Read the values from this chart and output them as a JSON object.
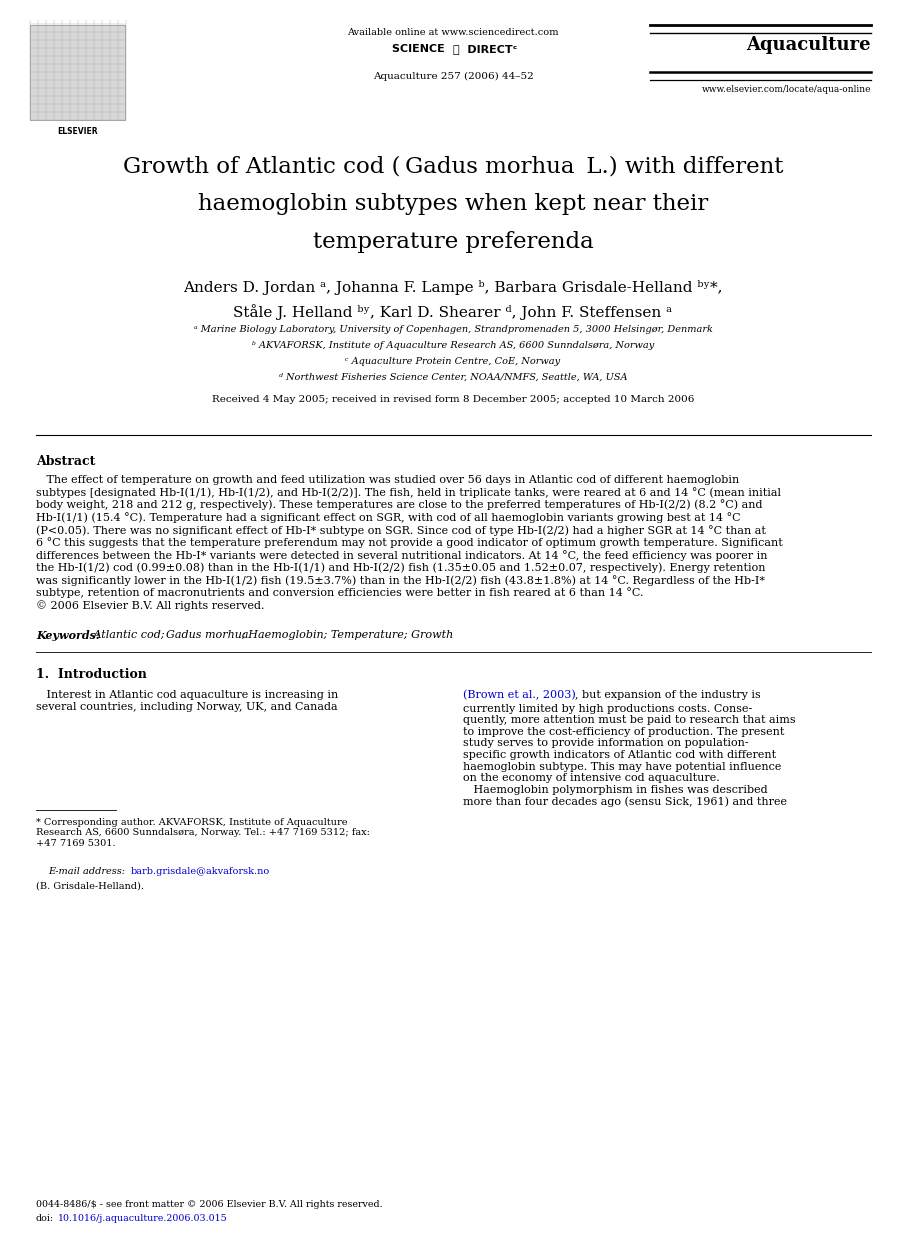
{
  "page_width": 9.07,
  "page_height": 12.38,
  "dpi": 100,
  "background_color": "#ffffff",
  "text_color": "#000000",
  "link_color": "#0000cd",
  "avail_online": "Available online at www.sciencedirect.com",
  "journal_name": "Aquaculture",
  "journal_ref": "Aquaculture 257 (2006) 44–52",
  "journal_url": "www.elsevier.com/locate/aqua-online",
  "title_line1_pre": "Growth of Atlantic cod (",
  "title_line1_italic": "Gadus morhua",
  "title_line1_post": " L.) with different",
  "title_line2": "haemoglobin subtypes when kept near their",
  "title_line3": "temperature preferenda",
  "author_line1": "Anders D. Jordan ᵃ, Johanna F. Lampe ᵇ, Barbara Grisdale-Helland ᵇʸ*,",
  "author_line2": "Ståle J. Helland ᵇʸ, Karl D. Shearer ᵈ, John F. Steffensen ᵃ",
  "affil_a": "ᵃ Marine Biology Laboratory, University of Copenhagen, Strandpromenaden 5, 3000 Helsingør, Denmark",
  "affil_b": "ᵇ AKVAFORSK, Institute of Aquaculture Research AS, 6600 Sunndalsøra, Norway",
  "affil_c": "ᶜ Aquaculture Protein Centre, CoE, Norway",
  "affil_d": "ᵈ Northwest Fisheries Science Center, NOAA/NMFS, Seattle, WA, USA",
  "received": "Received 4 May 2005; received in revised form 8 December 2005; accepted 10 March 2006",
  "abstract_heading": "Abstract",
  "abstract_indent": "   The effect of temperature on growth and feed utilization was studied over 56 days in Atlantic cod of different haemoglobin",
  "abstract_body": "subtypes [designated Hb-I(1/1), Hb-I(1/2), and Hb-I(2/2)]. The fish, held in triplicate tanks, were reared at 6 and 14 °C (mean initial body weight, 218 and 212 g, respectively). These temperatures are close to the preferred temperatures of Hb-I(2/2) (8.2 °C) and Hb-I(1/1) (15.4 °C). Temperature had a significant effect on SGR, with cod of all haemoglobin variants growing best at 14 °C (P<0.05). There was no significant effect of Hb-I* subtype on SGR. Since cod of type Hb-I(2/2) had a higher SGR at 14 °C than at 6 °C this suggests that the temperature preferendum may not provide a good indicator of optimum growth temperature. Significant differences between the Hb-I* variants were detected in several nutritional indicators. At 14 °C, the feed efficiency was poorer in the Hb-I(1/2) cod (0.99±0.08) than in the Hb-I(1/1) and Hb-I(2/2) fish (1.35±0.05 and 1.52±0.07, respectively). Energy retention was significantly lower in the Hb-I(1/2) fish (19.5±3.7%) than in the Hb-I(2/2) fish (43.8±1.8%) at 14 °C. Regardless of the Hb-I* subtype, retention of macronutrients and conversion efficiencies were better in fish reared at 6 than 14 °C.",
  "abstract_copy": "© 2006 Elsevier B.V. All rights reserved.",
  "kw_label": "Keywords:",
  "kw_text": " Atlantic cod; Gadus morhua; Haemoglobin; Temperature; Growth",
  "s1_head": "1.  Introduction",
  "s1_col1_line1": "   Interest in Atlantic cod aquaculture is increasing in",
  "s1_col1_line2": "several countries, including Norway, UK, and Canada",
  "s1_col2_link": "(Brown et al., 2003)",
  "s1_col2_rest": ", but expansion of the industry is\ncurrently limited by high productions costs. Conse-\nquently, more attention must be paid to research that aims\nto improve the cost-efficiency of production. The present\nstudy serves to provide information on population-\nspecific growth indicators of Atlantic cod with different\nhaemoglobin subtype. This may have potential influence\non the economy of intensive cod aquaculture.",
  "s1_col2_p2": "   Haemoglobin polymorphism in fishes was described\nmore than four decades ago (sensu Sick, 1961) and three",
  "fn_star": "* Corresponding author. AKVAFORSK, Institute of Aquaculture\nResearch AS, 6600 Sunndalsøra, Norway. Tel.: +47 7169 5312; fax:\n+47 7169 5301.",
  "fn_email_label": "   E-mail address: ",
  "fn_email": "barb.grisdale@akvaforsk.no",
  "fn_name": "(B. Grisdale-Helland).",
  "doi1": "0044-8486/$ - see front matter © 2006 Elsevier B.V. All rights reserved.",
  "doi2_pre": "doi:",
  "doi2_link": "10.1016/j.aquaculture.2006.03.015"
}
